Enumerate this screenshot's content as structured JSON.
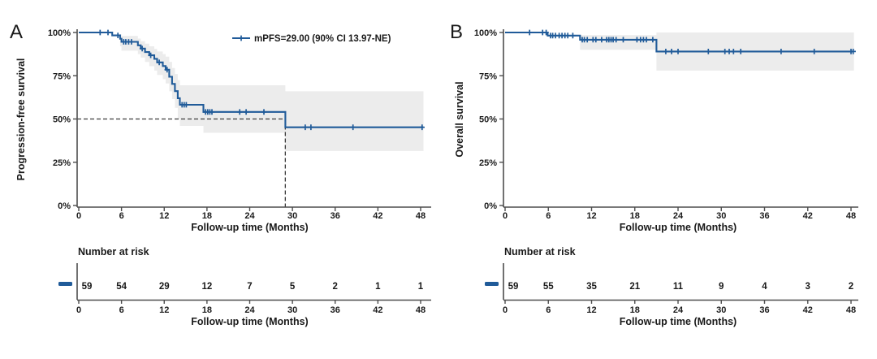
{
  "figure": {
    "colors": {
      "line": "#205b99",
      "ci_fill": "#ececec",
      "axis": "#4d4d4d",
      "dash": "#3c3c3c",
      "text": "#1a1a1a"
    }
  },
  "chart_data": [
    {
      "type": "line",
      "subtype": "kaplan-meier-step",
      "panel_label": "A",
      "ylabel": "Progression-free survival",
      "xlabel": "Follow-up time (Months)",
      "xticks": [
        0,
        6,
        12,
        18,
        24,
        30,
        36,
        42,
        48
      ],
      "yticks": [
        0,
        25,
        50,
        75,
        100
      ],
      "ytick_labels": [
        "0%",
        "25%",
        "50%",
        "75%",
        "100%"
      ],
      "xlim": [
        0,
        48.4
      ],
      "ylim": [
        0,
        100
      ],
      "legend": {
        "label": "mPFS=29.00 (90% CI 13.97-NE)"
      },
      "series": [
        {
          "name": "mPFS",
          "steps": [
            [
              0,
              100
            ],
            [
              4.7,
              98.3
            ],
            [
              5.8,
              96.4
            ],
            [
              6.0,
              94.6
            ],
            [
              8.3,
              92.6
            ],
            [
              8.7,
              90.7
            ],
            [
              9.3,
              88.7
            ],
            [
              9.9,
              86.8
            ],
            [
              10.6,
              84.8
            ],
            [
              11.0,
              82.7
            ],
            [
              11.8,
              80.6
            ],
            [
              12.2,
              78.5
            ],
            [
              12.7,
              74.4
            ],
            [
              13.1,
              70.3
            ],
            [
              13.5,
              66.1
            ],
            [
              13.9,
              62.0
            ],
            [
              14.2,
              58.2
            ],
            [
              17.5,
              54.1
            ],
            [
              29,
              45.2
            ]
          ],
          "end_t": 48.4,
          "censors": [
            [
              3.0,
              100
            ],
            [
              4.1,
              100
            ],
            [
              5.5,
              98.3
            ],
            [
              6.3,
              94.6
            ],
            [
              6.6,
              94.6
            ],
            [
              7.0,
              94.6
            ],
            [
              7.4,
              94.6
            ],
            [
              8.9,
              90.7
            ],
            [
              10.1,
              86.8
            ],
            [
              11.3,
              82.7
            ],
            [
              12.4,
              78.5
            ],
            [
              14.5,
              58.2
            ],
            [
              14.8,
              58.2
            ],
            [
              15.1,
              58.2
            ],
            [
              17.8,
              54.1
            ],
            [
              18.1,
              54.1
            ],
            [
              18.4,
              54.1
            ],
            [
              18.7,
              54.1
            ],
            [
              22.6,
              54.1
            ],
            [
              23.5,
              54.1
            ],
            [
              26.0,
              54.1
            ],
            [
              31.8,
              45.2
            ],
            [
              32.6,
              45.2
            ],
            [
              38.5,
              45.2
            ],
            [
              48.2,
              45.2
            ]
          ]
        }
      ],
      "ci_band": [
        [
          5.8,
          99,
          92
        ],
        [
          6.0,
          98,
          89.5
        ],
        [
          8.3,
          96.5,
          87.5
        ],
        [
          8.7,
          95,
          85.5
        ],
        [
          9.3,
          93.5,
          83
        ],
        [
          9.9,
          92,
          80.5
        ],
        [
          10.6,
          90.5,
          78
        ],
        [
          11.0,
          89,
          75.5
        ],
        [
          11.8,
          87.5,
          73
        ],
        [
          12.2,
          86,
          70.5
        ],
        [
          12.7,
          83,
          66
        ],
        [
          13.1,
          79.5,
          61.5
        ],
        [
          13.5,
          76,
          56.5
        ],
        [
          13.9,
          72.5,
          50
        ],
        [
          14.2,
          69.5,
          46
        ],
        [
          17.5,
          69.5,
          42
        ],
        [
          29,
          66,
          31.5
        ],
        [
          48.4,
          66,
          31.5
        ]
      ],
      "median_marker": {
        "time": 29,
        "survival": 50
      },
      "risk_table": {
        "title": "Number at risk",
        "xlabel": "Follow-up time (Months)",
        "xticks": [
          0,
          6,
          12,
          18,
          24,
          30,
          36,
          42,
          48
        ],
        "values": [
          59,
          54,
          29,
          12,
          7,
          5,
          2,
          1,
          1
        ]
      }
    },
    {
      "type": "line",
      "subtype": "kaplan-meier-step",
      "panel_label": "B",
      "ylabel": "Overall survival",
      "xlabel": "Follow-up time (Months)",
      "xticks": [
        0,
        6,
        12,
        18,
        24,
        30,
        36,
        42,
        48
      ],
      "yticks": [
        0,
        25,
        50,
        75,
        100
      ],
      "ytick_labels": [
        "0%",
        "25%",
        "50%",
        "75%",
        "100%"
      ],
      "xlim": [
        0,
        48.4
      ],
      "ylim": [
        0,
        100
      ],
      "legend": null,
      "series": [
        {
          "name": "OS",
          "steps": [
            [
              0,
              100
            ],
            [
              5.9,
              98.2
            ],
            [
              10.4,
              95.8
            ],
            [
              21.0,
              89.0
            ]
          ],
          "end_t": 48.4,
          "censors": [
            [
              3.4,
              100
            ],
            [
              5.2,
              100
            ],
            [
              5.7,
              100
            ],
            [
              6.3,
              98.2
            ],
            [
              6.6,
              98.2
            ],
            [
              7.0,
              98.2
            ],
            [
              7.5,
              98.2
            ],
            [
              7.9,
              98.2
            ],
            [
              8.3,
              98.2
            ],
            [
              8.7,
              98.2
            ],
            [
              9.4,
              98.2
            ],
            [
              10.7,
              95.8
            ],
            [
              11.0,
              95.8
            ],
            [
              11.4,
              95.8
            ],
            [
              12.2,
              95.8
            ],
            [
              12.6,
              95.8
            ],
            [
              13.4,
              95.8
            ],
            [
              14.1,
              95.8
            ],
            [
              14.4,
              95.8
            ],
            [
              14.7,
              95.8
            ],
            [
              15.0,
              95.8
            ],
            [
              15.4,
              95.8
            ],
            [
              16.4,
              95.8
            ],
            [
              18.3,
              95.8
            ],
            [
              18.8,
              95.8
            ],
            [
              19.2,
              95.8
            ],
            [
              19.6,
              95.8
            ],
            [
              20.5,
              95.8
            ],
            [
              22.3,
              89.0
            ],
            [
              23.1,
              89.0
            ],
            [
              24.0,
              89.0
            ],
            [
              28.2,
              89.0
            ],
            [
              30.5,
              89.0
            ],
            [
              31.1,
              89.0
            ],
            [
              31.7,
              89.0
            ],
            [
              32.7,
              89.0
            ],
            [
              38.3,
              89.0
            ],
            [
              42.9,
              89.0
            ],
            [
              48.0,
              89.0
            ],
            [
              48.3,
              89.0
            ]
          ]
        }
      ],
      "ci_band": [
        [
          10.4,
          98.5,
          90
        ],
        [
          21,
          100,
          78
        ],
        [
          48.4,
          100,
          78
        ]
      ],
      "median_marker": null,
      "risk_table": {
        "title": "Number at risk",
        "xlabel": "Follow-up time (Months)",
        "xticks": [
          0,
          6,
          12,
          18,
          24,
          30,
          36,
          42,
          48
        ],
        "values": [
          59,
          55,
          35,
          21,
          11,
          9,
          4,
          3,
          2
        ]
      }
    }
  ]
}
